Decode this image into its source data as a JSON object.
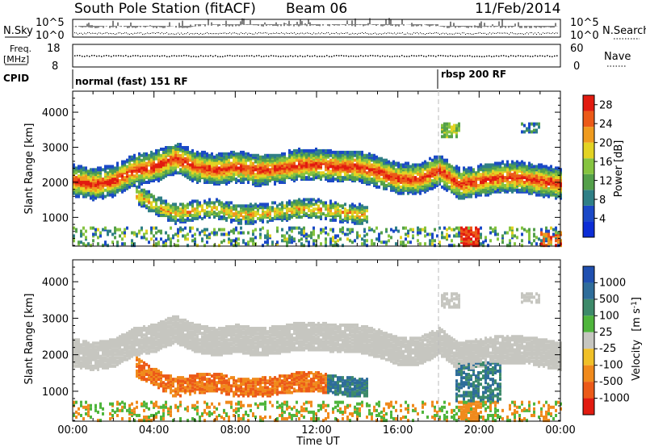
{
  "header": {
    "station": "South Pole Station (fitACF)",
    "beam": "Beam 06",
    "date": "11/Feb/2014"
  },
  "top_panels": {
    "nsky_label": "N.Sky",
    "nsky_ticks": [
      "10^5",
      "10^0"
    ],
    "nsearch_label": "N.Search",
    "nsearch_ticks": [
      "10^5",
      "10^0"
    ],
    "freq_label": "Freq.",
    "freq_unit": "[MHz]",
    "freq_ticks": [
      "18",
      "8"
    ],
    "nave_label": "Nave",
    "nave_ticks": [
      "60",
      "0"
    ],
    "cpid_label": "CPID",
    "cpid_segments": [
      {
        "label": "normal (fast) 151 RF",
        "start_hour": 0,
        "end_hour": 18
      },
      {
        "label": "rbsp 200 RF",
        "start_hour": 18,
        "end_hour": 24
      }
    ]
  },
  "chart_data": [
    {
      "type": "heatmap",
      "title": "",
      "xlabel": "Time UT",
      "ylabel": "Slant Range [km]",
      "xlim": [
        0,
        24
      ],
      "ylim": [
        180,
        4600
      ],
      "x_ticks": [
        "00:00",
        "04:00",
        "08:00",
        "12:00",
        "16:00",
        "20:00",
        "00:00"
      ],
      "y_ticks": [
        1000,
        2000,
        3000,
        4000
      ],
      "colorbar": {
        "label": "Power [dB]",
        "ticks": [
          4,
          8,
          12,
          16,
          20,
          24,
          28
        ],
        "colors": [
          "#0c2dd6",
          "#1b49c7",
          "#2f7f86",
          "#54a04a",
          "#86c440",
          "#e3d323",
          "#ef9b1f",
          "#ec5a18",
          "#e21b10"
        ],
        "range": [
          0,
          30
        ]
      },
      "main_band_km": [
        [
          0,
          2050
        ],
        [
          1,
          1950
        ],
        [
          2,
          2050
        ],
        [
          3,
          2350
        ],
        [
          4,
          2450
        ],
        [
          5,
          2700
        ],
        [
          6,
          2450
        ],
        [
          7,
          2350
        ],
        [
          8,
          2450
        ],
        [
          9,
          2350
        ],
        [
          10,
          2400
        ],
        [
          11,
          2500
        ],
        [
          12,
          2500
        ],
        [
          13,
          2450
        ],
        [
          14,
          2450
        ],
        [
          15,
          2300
        ],
        [
          16,
          2100
        ],
        [
          17,
          2100
        ],
        [
          18,
          2350
        ],
        [
          19,
          1950
        ],
        [
          20,
          2050
        ],
        [
          21,
          2150
        ],
        [
          22,
          2150
        ],
        [
          23,
          2050
        ],
        [
          24,
          1950
        ]
      ],
      "lower_band_km": [
        [
          3,
          1700
        ],
        [
          4,
          1350
        ],
        [
          5,
          1100
        ],
        [
          6,
          1200
        ],
        [
          7,
          1250
        ],
        [
          8,
          1100
        ],
        [
          9,
          1100
        ],
        [
          10,
          1150
        ],
        [
          11,
          1250
        ],
        [
          12,
          1250
        ],
        [
          13,
          1150
        ],
        [
          14,
          1100
        ]
      ]
    },
    {
      "type": "heatmap",
      "title": "",
      "xlabel": "Time UT",
      "ylabel": "Slant Range [km]",
      "xlim": [
        0,
        24
      ],
      "ylim": [
        180,
        4600
      ],
      "x_ticks": [
        "00:00",
        "04:00",
        "08:00",
        "12:00",
        "16:00",
        "20:00",
        "00:00"
      ],
      "y_ticks": [
        1000,
        2000,
        3000,
        4000
      ],
      "colorbar": {
        "label": "Velocity",
        "unit": "[m s",
        "unit_exp": "-1",
        "unit_close": "]",
        "ticks": [
          "1000",
          "500",
          "100",
          "25",
          "-25",
          "-100",
          "-500",
          "-1000"
        ],
        "colors": [
          "#2050b0",
          "#2f6d9a",
          "#3d8a6a",
          "#4fb53c",
          "#c6c6c0",
          "#f0c028",
          "#f08a1c",
          "#ec5a18",
          "#e21b10"
        ]
      }
    }
  ]
}
